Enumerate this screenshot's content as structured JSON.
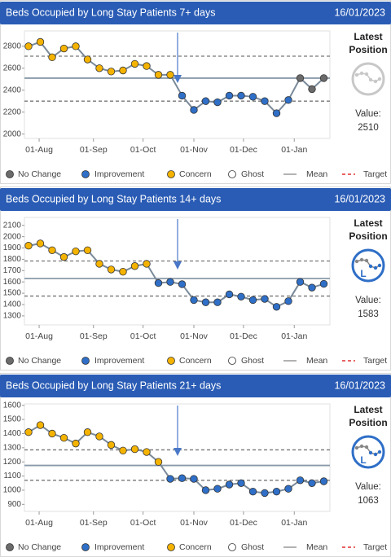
{
  "chart_data": [
    {
      "type": "line",
      "title": "Beds Occupied by Long Stay Patients 7+ days",
      "date": "16/01/2023",
      "categories": [
        null,
        null,
        null,
        null,
        null,
        null,
        null,
        null,
        null,
        null,
        null,
        null,
        null,
        null,
        null,
        null,
        null,
        null,
        null,
        null,
        null,
        null,
        null,
        null,
        null,
        null
      ],
      "series": [
        {
          "name": "Beds",
          "color": "#7a8a99",
          "values": [
            2800,
            2840,
            2700,
            2780,
            2800,
            2680,
            2600,
            2570,
            2580,
            2640,
            2620,
            2540,
            2540,
            2350,
            2220,
            2300,
            2290,
            2350,
            2350,
            2340,
            2300,
            2190,
            2310,
            2510,
            2410,
            2510
          ],
          "point_colors": [
            "#f5b301",
            "#f5b301",
            "#f5b301",
            "#f5b301",
            "#f5b301",
            "#f5b301",
            "#f5b301",
            "#f5b301",
            "#f5b301",
            "#f5b301",
            "#f5b301",
            "#f5b301",
            "#f5b301",
            "#2f6fc7",
            "#2f6fc7",
            "#2f6fc7",
            "#2f6fc7",
            "#2f6fc7",
            "#2f6fc7",
            "#2f6fc7",
            "#2f6fc7",
            "#2f6fc7",
            "#2f6fc7",
            "#6b6b6b",
            "#6b6b6b",
            "#6b6b6b"
          ]
        }
      ],
      "mean": 2510,
      "upper_limit": 2710,
      "lower_limit": 2300,
      "ylim": [
        1960,
        2940
      ],
      "yticks": [
        2000,
        2200,
        2400,
        2600,
        2800
      ],
      "xticks": [
        {
          "value": 0.9,
          "label": "01-Aug"
        },
        {
          "value": 5.5,
          "label": "01-Sep"
        },
        {
          "value": 9.7,
          "label": "01-Oct"
        },
        {
          "value": 14.0,
          "label": "01-Nov"
        },
        {
          "value": 18.2,
          "label": "01-Dec"
        },
        {
          "value": 22.5,
          "label": "01-Jan"
        }
      ],
      "position_title": [
        "Latest",
        "Position"
      ],
      "icon_color": "#c8c8c8",
      "value_label": "Value:",
      "latest_value": 2510,
      "legend": [
        {
          "label": "No Change",
          "color": "#6b6b6b"
        },
        {
          "label": "Improvement",
          "color": "#2f6fc7"
        },
        {
          "label": "Concern",
          "color": "#f5b301"
        },
        {
          "label": "Ghost",
          "color": "#ffffff"
        },
        {
          "label": "Mean",
          "color": "#999999"
        },
        {
          "label": "Target",
          "color": "#e03030"
        }
      ]
    },
    {
      "type": "line",
      "title": "Beds Occupied by Long Stay Patients 14+ days",
      "date": "16/01/2023",
      "categories": [
        null,
        null,
        null,
        null,
        null,
        null,
        null,
        null,
        null,
        null,
        null,
        null,
        null,
        null,
        null,
        null,
        null,
        null,
        null,
        null,
        null,
        null,
        null,
        null,
        null,
        null
      ],
      "series": [
        {
          "name": "Beds",
          "color": "#7a8a99",
          "values": [
            1920,
            1940,
            1880,
            1820,
            1870,
            1880,
            1760,
            1710,
            1690,
            1740,
            1760,
            1590,
            1600,
            1580,
            1440,
            1420,
            1420,
            1490,
            1470,
            1440,
            1450,
            1380,
            1430,
            1600,
            1550,
            1583
          ],
          "point_colors": [
            "#f5b301",
            "#f5b301",
            "#f5b301",
            "#f5b301",
            "#f5b301",
            "#f5b301",
            "#f5b301",
            "#f5b301",
            "#f5b301",
            "#f5b301",
            "#f5b301",
            "#2f6fc7",
            "#2f6fc7",
            "#2f6fc7",
            "#2f6fc7",
            "#2f6fc7",
            "#2f6fc7",
            "#2f6fc7",
            "#2f6fc7",
            "#2f6fc7",
            "#2f6fc7",
            "#2f6fc7",
            "#2f6fc7",
            "#2f6fc7",
            "#2f6fc7",
            "#2f6fc7"
          ]
        }
      ],
      "mean": 1630,
      "upper_limit": 1785,
      "lower_limit": 1475,
      "ylim": [
        1220,
        2170
      ],
      "yticks": [
        1300,
        1400,
        1500,
        1600,
        1700,
        1800,
        1900,
        2000,
        2100
      ],
      "xticks": [
        {
          "value": 0.9,
          "label": "01-Aug"
        },
        {
          "value": 5.5,
          "label": "01-Sep"
        },
        {
          "value": 9.7,
          "label": "01-Oct"
        },
        {
          "value": 14.0,
          "label": "01-Nov"
        },
        {
          "value": 18.2,
          "label": "01-Dec"
        },
        {
          "value": 22.5,
          "label": "01-Jan"
        }
      ],
      "position_title": [
        "Latest",
        "Position"
      ],
      "icon_color": "#2f6fc7",
      "icon_letter": "L",
      "value_label": "Value:",
      "latest_value": 1583,
      "legend": [
        {
          "label": "No Change",
          "color": "#6b6b6b"
        },
        {
          "label": "Improvement",
          "color": "#2f6fc7"
        },
        {
          "label": "Concern",
          "color": "#f5b301"
        },
        {
          "label": "Ghost",
          "color": "#ffffff"
        },
        {
          "label": "Mean",
          "color": "#999999"
        },
        {
          "label": "Target",
          "color": "#e03030"
        }
      ]
    },
    {
      "type": "line",
      "title": "Beds Occupied by Long Stay Patients 21+ days",
      "date": "16/01/2023",
      "categories": [
        null,
        null,
        null,
        null,
        null,
        null,
        null,
        null,
        null,
        null,
        null,
        null,
        null,
        null,
        null,
        null,
        null,
        null,
        null,
        null,
        null,
        null,
        null,
        null,
        null,
        null
      ],
      "series": [
        {
          "name": "Beds",
          "color": "#7a8a99",
          "values": [
            1410,
            1460,
            1400,
            1370,
            1330,
            1410,
            1380,
            1320,
            1280,
            1290,
            1270,
            1200,
            1080,
            1085,
            1080,
            1000,
            1010,
            1040,
            1050,
            990,
            980,
            990,
            1010,
            1070,
            1050,
            1063
          ],
          "point_colors": [
            "#f5b301",
            "#f5b301",
            "#f5b301",
            "#f5b301",
            "#f5b301",
            "#f5b301",
            "#f5b301",
            "#f5b301",
            "#f5b301",
            "#f5b301",
            "#f5b301",
            "#f5b301",
            "#2f6fc7",
            "#2f6fc7",
            "#2f6fc7",
            "#2f6fc7",
            "#2f6fc7",
            "#2f6fc7",
            "#2f6fc7",
            "#2f6fc7",
            "#2f6fc7",
            "#2f6fc7",
            "#2f6fc7",
            "#2f6fc7",
            "#2f6fc7",
            "#2f6fc7"
          ]
        }
      ],
      "mean": 1175,
      "upper_limit": 1285,
      "lower_limit": 1070,
      "ylim": [
        850,
        1610
      ],
      "yticks": [
        900,
        1000,
        1100,
        1200,
        1300,
        1400,
        1500,
        1600
      ],
      "xticks": [
        {
          "value": 0.9,
          "label": "01-Aug"
        },
        {
          "value": 5.5,
          "label": "01-Sep"
        },
        {
          "value": 9.7,
          "label": "01-Oct"
        },
        {
          "value": 14.0,
          "label": "01-Nov"
        },
        {
          "value": 18.2,
          "label": "01-Dec"
        },
        {
          "value": 22.5,
          "label": "01-Jan"
        }
      ],
      "position_title": [
        "Latest",
        "Position"
      ],
      "icon_color": "#2f6fc7",
      "icon_letter": "L",
      "value_label": "Value:",
      "latest_value": 1063,
      "legend": [
        {
          "label": "No Change",
          "color": "#6b6b6b"
        },
        {
          "label": "Improvement",
          "color": "#2f6fc7"
        },
        {
          "label": "Concern",
          "color": "#f5b301"
        },
        {
          "label": "Ghost",
          "color": "#ffffff"
        },
        {
          "label": "Mean",
          "color": "#999999"
        },
        {
          "label": "Target",
          "color": "#e03030"
        }
      ]
    }
  ]
}
